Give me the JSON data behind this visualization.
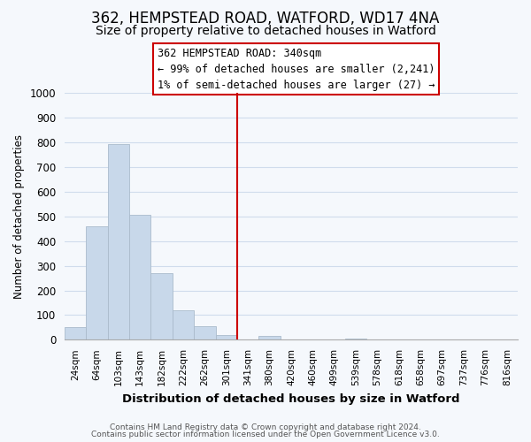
{
  "title": "362, HEMPSTEAD ROAD, WATFORD, WD17 4NA",
  "subtitle": "Size of property relative to detached houses in Watford",
  "xlabel": "Distribution of detached houses by size in Watford",
  "ylabel": "Number of detached properties",
  "bar_labels": [
    "24sqm",
    "64sqm",
    "103sqm",
    "143sqm",
    "182sqm",
    "222sqm",
    "262sqm",
    "301sqm",
    "341sqm",
    "380sqm",
    "420sqm",
    "460sqm",
    "499sqm",
    "539sqm",
    "578sqm",
    "618sqm",
    "658sqm",
    "697sqm",
    "737sqm",
    "776sqm",
    "816sqm"
  ],
  "bar_values": [
    50,
    460,
    795,
    505,
    270,
    120,
    55,
    20,
    0,
    15,
    0,
    0,
    0,
    5,
    0,
    0,
    0,
    0,
    0,
    0,
    0
  ],
  "bar_color": "#c8d8ea",
  "bar_edge_color": "#aabbcc",
  "vline_color": "#cc0000",
  "annotation_title": "362 HEMPSTEAD ROAD: 340sqm",
  "annotation_line1": "← 99% of detached houses are smaller (2,241)",
  "annotation_line2": "1% of semi-detached houses are larger (27) →",
  "annotation_box_color": "#ffffff",
  "annotation_box_edge": "#cc0000",
  "footer_line1": "Contains HM Land Registry data © Crown copyright and database right 2024.",
  "footer_line2": "Contains public sector information licensed under the Open Government Licence v3.0.",
  "ylim": [
    0,
    1000
  ],
  "background_color": "#f5f8fc",
  "grid_color": "#d0dcec",
  "title_fontsize": 12,
  "subtitle_fontsize": 10
}
